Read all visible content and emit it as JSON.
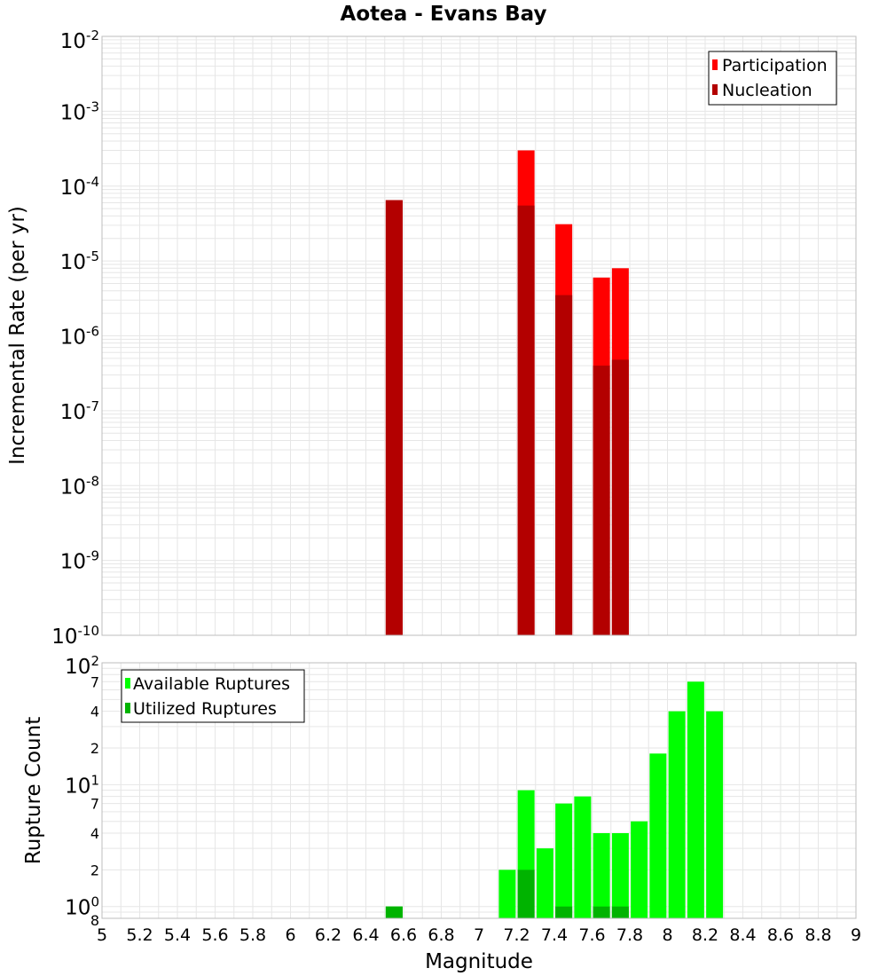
{
  "title": "Aotea - Evans Bay",
  "xlabel": "Magnitude",
  "colors": {
    "participation": "#ff0000",
    "nucleation": "#b30000",
    "available": "#00ff00",
    "utilized": "#00b300",
    "grid": "#e6e6e6",
    "frame": "#bdbdbd"
  },
  "chart_data": [
    {
      "type": "bar",
      "name": "rate-panel",
      "ylabel": "Incremental Rate (per yr)",
      "yscale": "log",
      "ylim": [
        1e-10,
        0.01
      ],
      "xlim": [
        5,
        9
      ],
      "x_ticks": [
        "5",
        "5.2",
        "5.4",
        "5.6",
        "5.8",
        "6",
        "6.2",
        "6.4",
        "6.6",
        "6.8",
        "7",
        "7.2",
        "7.4",
        "7.6",
        "7.8",
        "8",
        "8.2",
        "8.4",
        "8.6",
        "8.8",
        "9"
      ],
      "y_tick_labels": [
        {
          "base": "10",
          "exp": "-2"
        },
        {
          "base": "10",
          "exp": "-3"
        },
        {
          "base": "10",
          "exp": "-4"
        },
        {
          "base": "10",
          "exp": "-5"
        },
        {
          "base": "10",
          "exp": "-6"
        },
        {
          "base": "10",
          "exp": "-7"
        },
        {
          "base": "10",
          "exp": "-8"
        },
        {
          "base": "10",
          "exp": "-9"
        },
        {
          "base": "10",
          "exp": "-10"
        }
      ],
      "legend": {
        "position": "top-right",
        "entries": [
          "Participation",
          "Nucleation"
        ]
      },
      "series": [
        {
          "name": "Participation",
          "x": [
            6.55,
            7.25,
            7.45,
            7.65,
            7.75
          ],
          "values": [
            6.5e-05,
            0.0003,
            3.1e-05,
            6e-06,
            8e-06
          ]
        },
        {
          "name": "Nucleation",
          "x": [
            6.55,
            7.25,
            7.45,
            7.65,
            7.75
          ],
          "values": [
            6.5e-05,
            5.5e-05,
            3.5e-06,
            4e-07,
            4.8e-07
          ]
        }
      ]
    },
    {
      "type": "bar",
      "name": "count-panel",
      "ylabel": "Rupture Count",
      "yscale": "log",
      "ylim": [
        0.8,
        100
      ],
      "xlim": [
        5,
        9
      ],
      "y_tick_labels": [
        {
          "base": "10",
          "exp": "2"
        },
        {
          "base": "7",
          "exp": ""
        },
        {
          "base": "4",
          "exp": ""
        },
        {
          "base": "2",
          "exp": ""
        },
        {
          "base": "10",
          "exp": "1"
        },
        {
          "base": "7",
          "exp": ""
        },
        {
          "base": "4",
          "exp": ""
        },
        {
          "base": "2",
          "exp": ""
        },
        {
          "base": "10",
          "exp": "0"
        },
        {
          "base": "8",
          "exp": ""
        }
      ],
      "legend": {
        "position": "top-left",
        "entries": [
          "Available Ruptures",
          "Utilized Ruptures"
        ]
      },
      "series": [
        {
          "name": "Available Ruptures",
          "x": [
            6.55,
            7.15,
            7.25,
            7.35,
            7.45,
            7.55,
            7.65,
            7.75,
            7.85,
            7.95,
            8.05,
            8.15,
            8.25
          ],
          "values": [
            1,
            2,
            9,
            3,
            7,
            8,
            4,
            4,
            5,
            18,
            40,
            70,
            40
          ]
        },
        {
          "name": "Utilized Ruptures",
          "x": [
            6.55,
            7.25,
            7.45,
            7.65,
            7.75
          ],
          "values": [
            1,
            2,
            1,
            1,
            1
          ]
        }
      ]
    }
  ]
}
